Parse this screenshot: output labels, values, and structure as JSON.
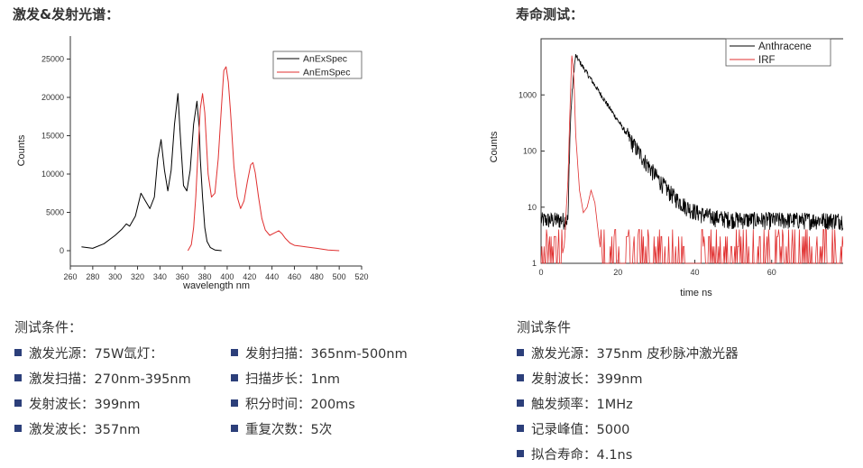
{
  "left": {
    "section_title": "激发&发射光谱：",
    "conditions_title": "测试条件：",
    "conditions_col1": [
      "激发光源：75W氙灯：",
      "激发扫描：270nm-395nm",
      "发射波长：399nm",
      "激发波长：357nm"
    ],
    "conditions_col2": [
      "发射扫描：365nm-500nm",
      "扫描步长：1nm",
      "积分时间：200ms",
      "重复次数：5次"
    ]
  },
  "right": {
    "section_title": "寿命测试：",
    "conditions_title": "测试条件",
    "conditions": [
      "激发光源：375nm 皮秒脉冲激光器",
      "发射波长：399nm",
      "触发频率：1MHz",
      "记录峰值：5000",
      "拟合寿命：4.1ns"
    ]
  },
  "chart_data": [
    {
      "type": "line",
      "title": "",
      "xlabel": "wavelength nm",
      "ylabel": "Counts",
      "xlim": [
        260,
        520
      ],
      "ylim": [
        -2000,
        28000
      ],
      "xticks": [
        260,
        280,
        300,
        320,
        340,
        360,
        380,
        400,
        420,
        440,
        460,
        480,
        500,
        520
      ],
      "yticks": [
        0,
        5000,
        10000,
        15000,
        20000,
        25000
      ],
      "legend_position": "top-right",
      "series": [
        {
          "name": "AnExSpec",
          "color": "#000000",
          "x": [
            270,
            280,
            290,
            300,
            306,
            310,
            313,
            318,
            323,
            327,
            331,
            335,
            338,
            341,
            344,
            347,
            350,
            353,
            356,
            358,
            361,
            364,
            367,
            370,
            373,
            375,
            376,
            378,
            380,
            382,
            385,
            389,
            392,
            395
          ],
          "y": [
            500,
            300,
            900,
            2000,
            2800,
            3500,
            3200,
            4500,
            7500,
            6500,
            5500,
            7000,
            12000,
            14500,
            10500,
            7800,
            10500,
            16500,
            20500,
            15500,
            8500,
            7800,
            10500,
            16500,
            19500,
            16000,
            12000,
            7000,
            3000,
            1200,
            400,
            100,
            50,
            0
          ]
        },
        {
          "name": "AnEmSpec",
          "color": "#e03030",
          "x": [
            365,
            368,
            370,
            372,
            374,
            376,
            378,
            380,
            383,
            386,
            389,
            392,
            395,
            397,
            399,
            401,
            403,
            406,
            409,
            412,
            415,
            418,
            421,
            423,
            425,
            428,
            431,
            434,
            438,
            442,
            446,
            449,
            452,
            456,
            460,
            465,
            470,
            480,
            490,
            500
          ],
          "y": [
            0,
            800,
            3000,
            7000,
            13000,
            18500,
            20500,
            18000,
            10000,
            7000,
            7500,
            12000,
            19000,
            23500,
            24000,
            22000,
            18000,
            11000,
            7000,
            5500,
            6500,
            9000,
            11200,
            11500,
            10200,
            7000,
            4200,
            2700,
            2000,
            2300,
            2600,
            2200,
            1600,
            1000,
            700,
            600,
            500,
            300,
            100,
            0
          ]
        }
      ]
    },
    {
      "type": "line",
      "title": "",
      "xlabel": "time ns",
      "ylabel": "Counts",
      "yscale": "log",
      "xlim": [
        0,
        80
      ],
      "ylim": [
        1,
        10000
      ],
      "xticks": [
        0,
        20,
        40,
        60,
        80
      ],
      "yticks": [
        1,
        10,
        100,
        1000
      ],
      "legend_position": "top-right",
      "series": [
        {
          "name": "Anthracene",
          "color": "#000000",
          "lifetime_ns": 4.1,
          "peak_time_ns": 9,
          "peak_counts": 5000,
          "baseline_counts": 6,
          "noise": "±35%"
        },
        {
          "name": "IRF",
          "color": "#e03030",
          "x": [
            0,
            5,
            6,
            7,
            7.5,
            8,
            8.5,
            9,
            10,
            11,
            12,
            13,
            14,
            15,
            16,
            80
          ],
          "y": [
            1,
            1,
            2,
            30,
            500,
            5000,
            2500,
            200,
            20,
            8,
            10,
            20,
            12,
            3,
            1,
            1
          ],
          "noise_floor": "1–5 sporadic counts"
        }
      ]
    }
  ]
}
